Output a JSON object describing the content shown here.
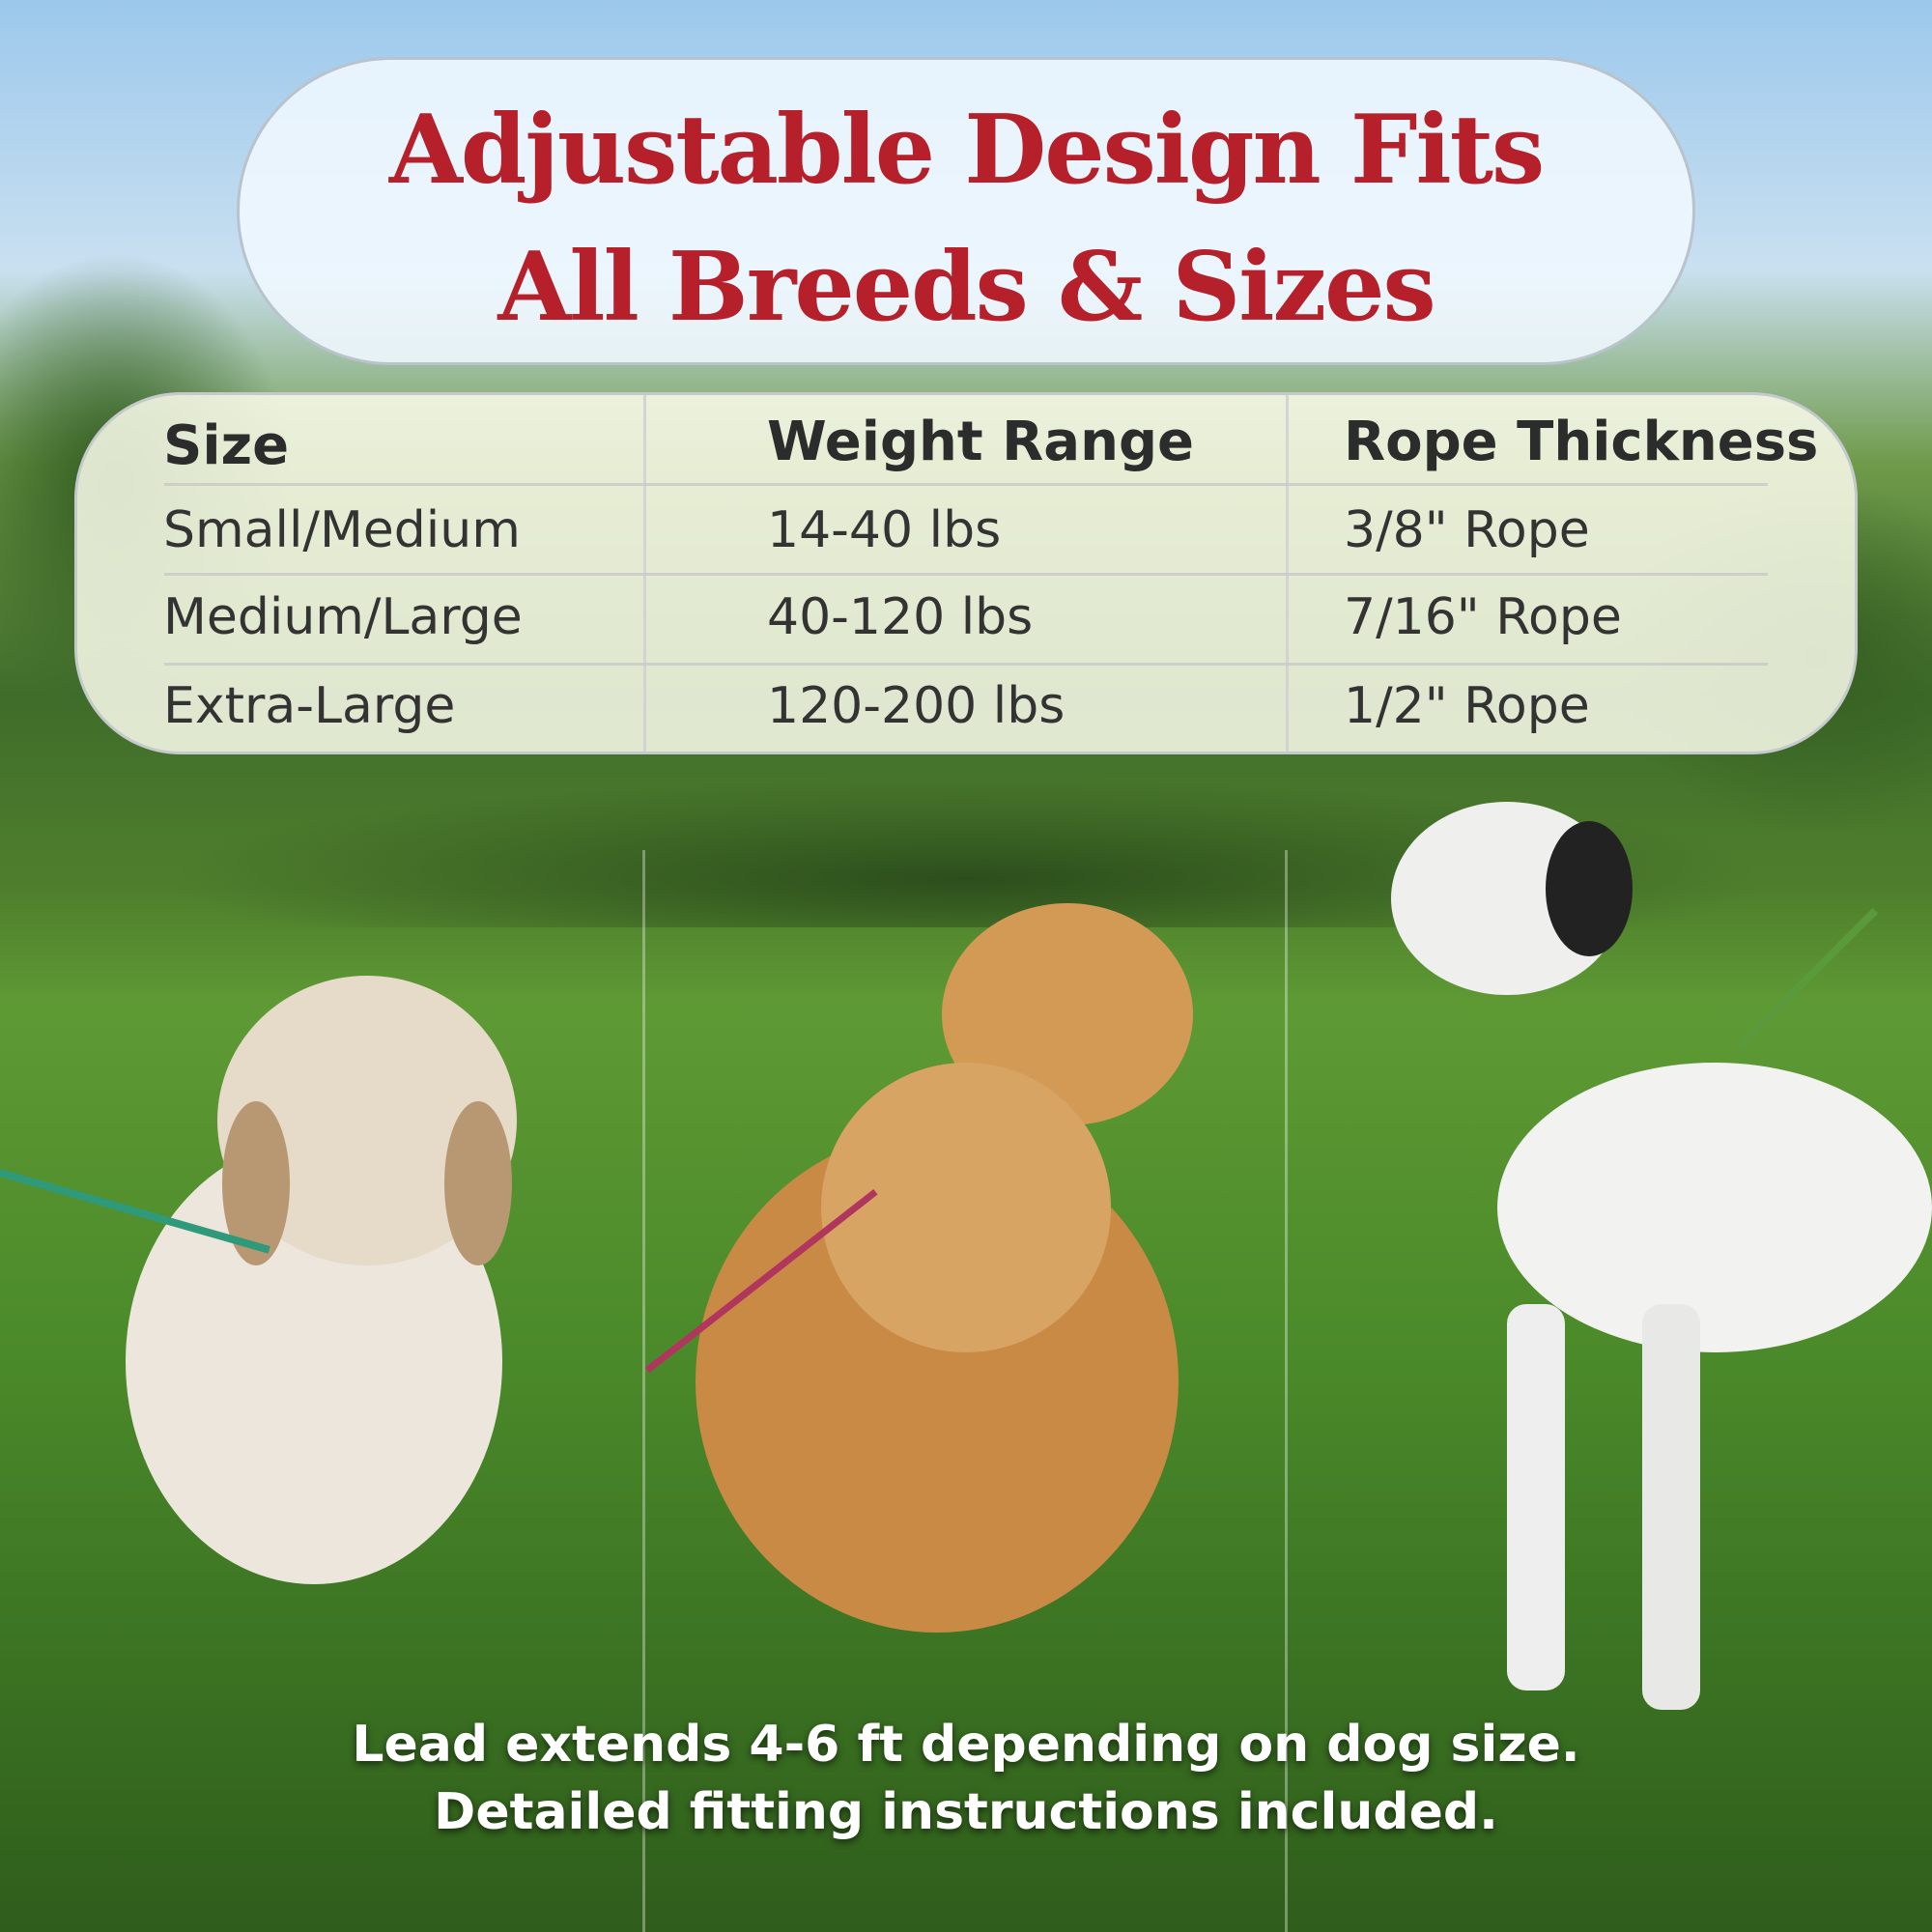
{
  "title": {
    "line1": "Adjustable Design Fits",
    "line2": "All Breeds & Sizes",
    "color": "#b5202a"
  },
  "table": {
    "headers": [
      "Size",
      "Weight Range",
      "Rope Thickness"
    ],
    "rows": [
      [
        "Small/Medium",
        "14-40 lbs",
        "3/8\" Rope"
      ],
      [
        "Medium/Large",
        "40-120 lbs",
        "7/16\" Rope"
      ],
      [
        "Extra-Large",
        "120-200 lbs",
        "1/2\" Rope"
      ]
    ]
  },
  "footer": {
    "line1": "Lead extends 4-6 ft depending on dog size.",
    "line2": "Detailed fitting instructions included."
  }
}
